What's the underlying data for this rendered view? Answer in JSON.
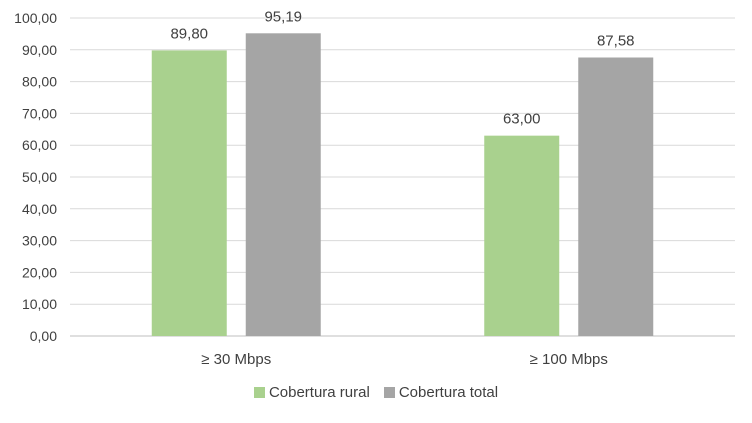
{
  "chart_data": {
    "type": "bar",
    "categories": [
      "≥ 30 Mbps",
      "≥ 100 Mbps"
    ],
    "series": [
      {
        "name": "Cobertura rural",
        "values": [
          89.8,
          63.0
        ],
        "labels": [
          "89,80",
          "63,00"
        ],
        "color": "#a9d18e"
      },
      {
        "name": "Cobertura total",
        "values": [
          95.19,
          87.58
        ],
        "labels": [
          "95,19",
          "87,58"
        ],
        "color": "#a5a5a5"
      }
    ],
    "yticks": [
      "0,00",
      "10,00",
      "20,00",
      "30,00",
      "40,00",
      "50,00",
      "60,00",
      "70,00",
      "80,00",
      "90,00",
      "100,00"
    ],
    "ylim": [
      0,
      100
    ],
    "grid": true,
    "gridColor": "#d9d9d9",
    "legend": "bottom"
  }
}
